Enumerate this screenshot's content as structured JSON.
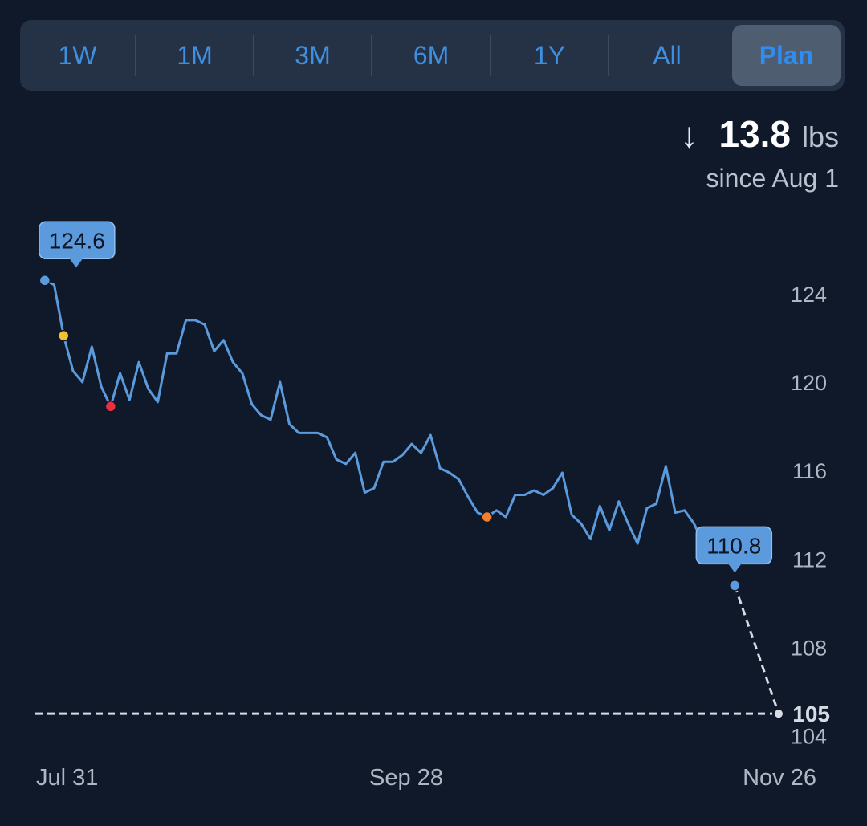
{
  "range_tabs": [
    {
      "label": "1W",
      "active": false
    },
    {
      "label": "1M",
      "active": false
    },
    {
      "label": "3M",
      "active": false
    },
    {
      "label": "6M",
      "active": false
    },
    {
      "label": "1Y",
      "active": false
    },
    {
      "label": "All",
      "active": false
    },
    {
      "label": "Plan",
      "active": true
    }
  ],
  "summary": {
    "arrow": "↓",
    "delta": "13.8",
    "unit": "lbs",
    "since": "since Aug 1"
  },
  "colors": {
    "background": "#0f1929",
    "line": "#5b9bdd",
    "projection": "#d9dde3",
    "marker_yellow": "#f2c230",
    "marker_red": "#e83040",
    "marker_orange": "#f57c28",
    "callout": "#5b9bdd"
  },
  "chart_data": {
    "type": "line",
    "x_axis": {
      "range": [
        0,
        118
      ],
      "ticks": [
        {
          "x": 0,
          "label": "Jul 31"
        },
        {
          "x": 59,
          "label": "Sep 28"
        },
        {
          "x": 118,
          "label": "Nov 26"
        }
      ]
    },
    "y_axis": {
      "range": [
        103.3,
        125.7
      ],
      "ticks": [
        124,
        120,
        116,
        112,
        108,
        104
      ]
    },
    "target": {
      "value": 105,
      "label": "105"
    },
    "series": [
      {
        "points": [
          [
            1,
            124.6
          ],
          [
            2.5,
            124.4
          ],
          [
            4,
            122.1
          ],
          [
            5.5,
            120.5
          ],
          [
            7,
            120.0
          ],
          [
            8.5,
            121.6
          ],
          [
            10,
            119.8
          ],
          [
            11.5,
            118.9
          ],
          [
            13,
            120.4
          ],
          [
            14.5,
            119.2
          ],
          [
            16,
            120.9
          ],
          [
            17.5,
            119.7
          ],
          [
            19,
            119.1
          ],
          [
            20.5,
            121.3
          ],
          [
            22,
            121.3
          ],
          [
            23.5,
            122.8
          ],
          [
            25,
            122.8
          ],
          [
            26.5,
            122.6
          ],
          [
            28,
            121.4
          ],
          [
            29.5,
            121.9
          ],
          [
            31,
            120.9
          ],
          [
            32.5,
            120.4
          ],
          [
            34,
            119.0
          ],
          [
            35.5,
            118.5
          ],
          [
            37,
            118.3
          ],
          [
            38.5,
            120.0
          ],
          [
            40,
            118.1
          ],
          [
            41.5,
            117.7
          ],
          [
            43,
            117.7
          ],
          [
            44.5,
            117.7
          ],
          [
            46,
            117.5
          ],
          [
            47.5,
            116.5
          ],
          [
            49,
            116.3
          ],
          [
            50.5,
            116.8
          ],
          [
            52,
            115.0
          ],
          [
            53.5,
            115.2
          ],
          [
            55,
            116.4
          ],
          [
            56.5,
            116.4
          ],
          [
            58,
            116.7
          ],
          [
            59.5,
            117.2
          ],
          [
            61,
            116.8
          ],
          [
            62.5,
            117.6
          ],
          [
            64,
            116.1
          ],
          [
            65.5,
            115.9
          ],
          [
            67,
            115.6
          ],
          [
            68.5,
            114.8
          ],
          [
            70,
            114.1
          ],
          [
            71.5,
            113.9
          ],
          [
            73,
            114.2
          ],
          [
            74.5,
            113.9
          ],
          [
            76,
            114.9
          ],
          [
            77.5,
            114.9
          ],
          [
            79,
            115.1
          ],
          [
            80.5,
            114.9
          ],
          [
            82,
            115.2
          ],
          [
            83.5,
            115.9
          ],
          [
            85,
            114.0
          ],
          [
            86.5,
            113.6
          ],
          [
            88,
            112.9
          ],
          [
            89.5,
            114.4
          ],
          [
            91,
            113.3
          ],
          [
            92.5,
            114.6
          ],
          [
            94,
            113.6
          ],
          [
            95.5,
            112.7
          ],
          [
            97,
            114.3
          ],
          [
            98.5,
            114.5
          ],
          [
            100,
            116.2
          ],
          [
            101.5,
            114.1
          ],
          [
            103,
            114.2
          ],
          [
            104.5,
            113.6
          ],
          [
            106,
            112.7
          ]
        ]
      }
    ],
    "projection": {
      "points": [
        [
          111,
          110.8
        ],
        [
          118,
          105
        ]
      ]
    },
    "markers": [
      {
        "x": 1,
        "y": 124.6,
        "color": "#5b9bdd"
      },
      {
        "x": 4,
        "y": 122.1,
        "color": "#f2c230"
      },
      {
        "x": 11.5,
        "y": 118.9,
        "color": "#e83040"
      },
      {
        "x": 71.5,
        "y": 113.9,
        "color": "#f57c28"
      },
      {
        "x": 111,
        "y": 110.8,
        "color": "#5b9bdd"
      }
    ],
    "callouts": [
      {
        "x": 1,
        "y": 124.6,
        "label": "124.6"
      },
      {
        "x": 111,
        "y": 110.8,
        "label": "110.8"
      }
    ]
  }
}
